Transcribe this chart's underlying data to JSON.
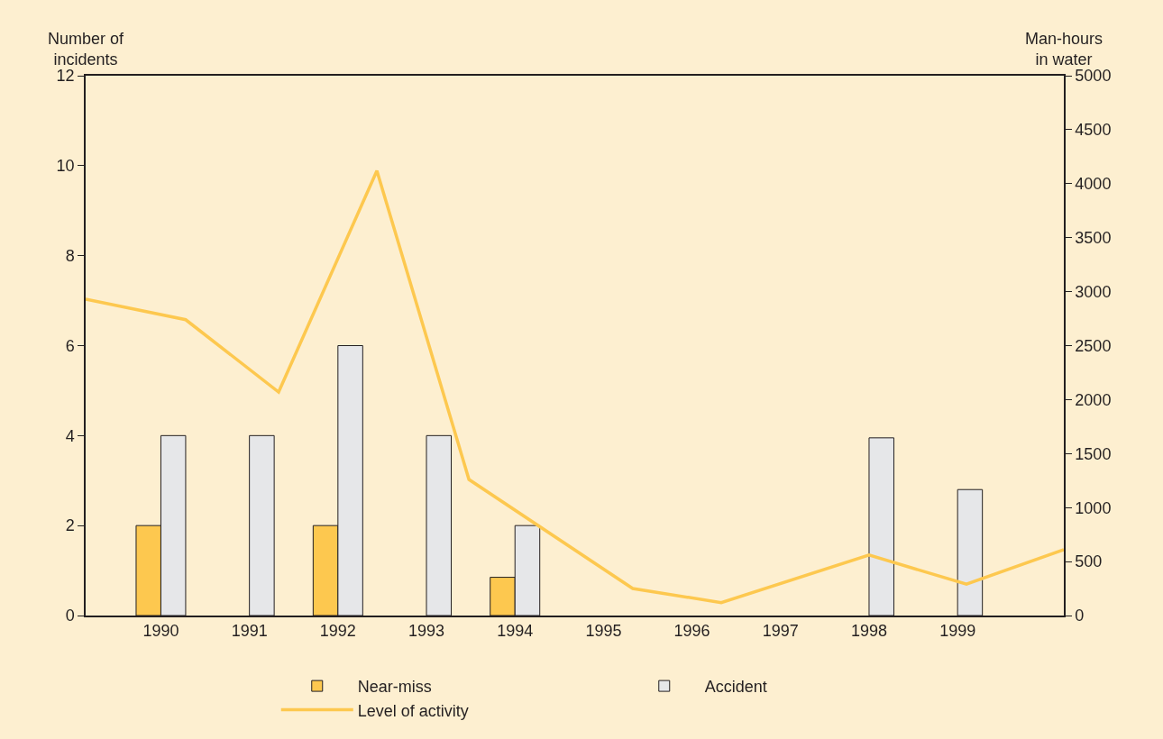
{
  "chart_data": {
    "type": "bar",
    "ylabel": "Number of incidents",
    "y2label": "Man-hours in water",
    "x": [
      1990,
      1991,
      1992,
      1993,
      1994,
      1995,
      1996,
      1997,
      1998,
      1999
    ],
    "xlim": [
      1989.15,
      2000.2
    ],
    "xticks": [
      1990,
      1991,
      1992,
      1993,
      1994,
      1995,
      1996,
      1997,
      1998,
      1999
    ],
    "ylim": [
      0,
      12
    ],
    "yticks": [
      0,
      2,
      4,
      6,
      8,
      10,
      12
    ],
    "y2lim": [
      0,
      5000
    ],
    "y2ticks": [
      0,
      500,
      1000,
      1500,
      2000,
      2500,
      3000,
      3500,
      4000,
      4500,
      5000
    ],
    "series": [
      {
        "name": "Near-miss",
        "color": "#fdc84f",
        "values": [
          2,
          0,
          2,
          0,
          0.85,
          0,
          0,
          0,
          0,
          0
        ]
      },
      {
        "name": "Accident",
        "color": "#e6e7e9",
        "values": [
          4,
          4,
          6,
          4,
          2,
          0,
          0,
          0,
          3.95,
          2.8
        ]
      },
      {
        "name": "Level of activity",
        "type": "line",
        "axis": "y2",
        "color": "#fdc84f",
        "x": [
          1989.15,
          1990.28,
          1991.33,
          1992.44,
          1993.48,
          1995.33,
          1996.33,
          1998.0,
          1999.1,
          2000.2
        ],
        "values": [
          2930,
          2740,
          2070,
          4120,
          1260,
          250,
          120,
          560,
          290,
          610
        ]
      }
    ],
    "grid": false,
    "legend": "bottom",
    "marker": "none"
  }
}
